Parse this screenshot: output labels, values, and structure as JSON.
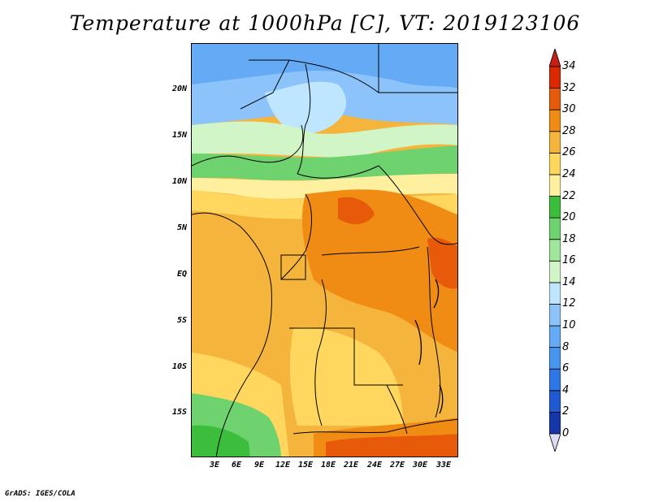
{
  "title": "Temperature at 1000hPa [C], VT: 2019123106",
  "credit": "GrADS: IGES/COLA",
  "map": {
    "region": "Central Africa",
    "lat_labels": [
      "20N",
      "15N",
      "10N",
      "5N",
      "EQ",
      "5S",
      "10S",
      "15S"
    ],
    "lon_labels": [
      "3E",
      "6E",
      "9E",
      "12E",
      "15E",
      "18E",
      "21E",
      "24E",
      "27E",
      "30E",
      "33E"
    ]
  },
  "colorbar": {
    "labels": [
      "0",
      "2",
      "4",
      "6",
      "8",
      "10",
      "12",
      "14",
      "16",
      "18",
      "20",
      "22",
      "24",
      "26",
      "28",
      "30",
      "32",
      "34"
    ],
    "colors": [
      "#0a0a78",
      "#1437aa",
      "#1e5ad2",
      "#2d78e6",
      "#4696f0",
      "#64aaf5",
      "#8cc3fa",
      "#bee6ff",
      "#d2f5c8",
      "#a0e69b",
      "#6ed26e",
      "#3cbe3c",
      "#fff0a0",
      "#ffd75f",
      "#f5b43c",
      "#f08c14",
      "#e65a0a",
      "#dc2800"
    ],
    "below_color": "#dcdcf5",
    "above_color": "#c81e14"
  }
}
